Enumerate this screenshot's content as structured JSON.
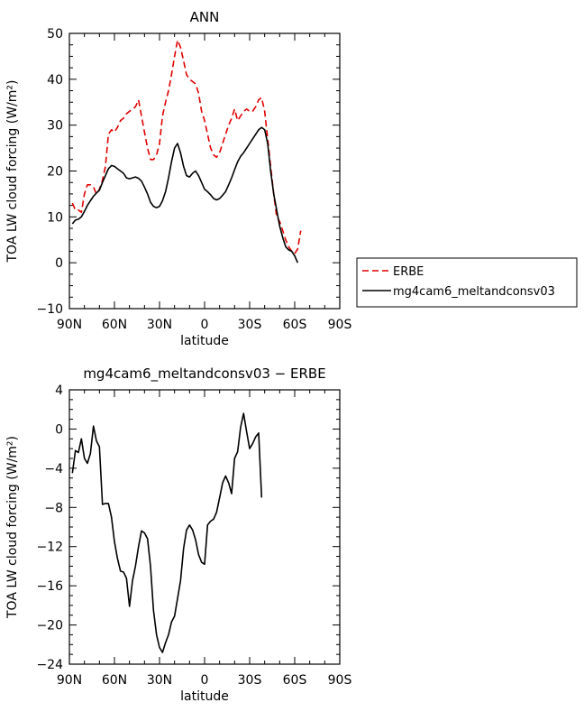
{
  "colors": {
    "erbe": "#e00000",
    "model": "#000000"
  },
  "chart_data": [
    {
      "type": "line",
      "title": "ANN",
      "xlabel": "latitude",
      "ylabel": "TOA LW cloud forcing (W/m²)",
      "xlim": [
        90,
        -90
      ],
      "ylim": [
        -10,
        50
      ],
      "xticks": [
        90,
        60,
        30,
        0,
        -30,
        -60,
        -90
      ],
      "xtick_labels": [
        "90N",
        "60N",
        "30N",
        "0",
        "30S",
        "60S",
        "90S"
      ],
      "yticks": [
        -10,
        0,
        10,
        20,
        30,
        40,
        50
      ],
      "ytick_labels": [
        "−10",
        "0",
        "10",
        "20",
        "30",
        "40",
        "50"
      ],
      "legend": {
        "placement": "right",
        "entries": [
          "ERBE",
          "mg4cam6_meltandconsv03"
        ]
      },
      "series": [
        {
          "name": "ERBE",
          "style": "dashed",
          "points": [
            [
              88,
              13
            ],
            [
              86,
              11.5
            ],
            [
              84,
              11.5
            ],
            [
              82,
              11
            ],
            [
              80,
              15
            ],
            [
              78,
              17
            ],
            [
              76,
              17
            ],
            [
              74,
              16.5
            ],
            [
              72,
              15
            ],
            [
              70,
              16
            ],
            [
              68,
              18
            ],
            [
              66,
              21
            ],
            [
              64,
              28
            ],
            [
              62,
              29
            ],
            [
              60,
              28.5
            ],
            [
              58,
              29.5
            ],
            [
              56,
              31
            ],
            [
              54,
              31.5
            ],
            [
              52,
              32.5
            ],
            [
              50,
              33
            ],
            [
              48,
              33.5
            ],
            [
              46,
              34
            ],
            [
              44,
              35.5
            ],
            [
              42,
              32
            ],
            [
              40,
              28.5
            ],
            [
              38,
              25
            ],
            [
              36,
              22.5
            ],
            [
              34,
              22.5
            ],
            [
              32,
              23.5
            ],
            [
              30,
              26
            ],
            [
              28,
              32
            ],
            [
              26,
              35
            ],
            [
              24,
              37.5
            ],
            [
              22,
              41
            ],
            [
              20,
              45
            ],
            [
              18,
              48.5
            ],
            [
              16,
              47
            ],
            [
              14,
              44
            ],
            [
              12,
              41
            ],
            [
              10,
              40
            ],
            [
              8,
              39.5
            ],
            [
              6,
              39
            ],
            [
              4,
              37
            ],
            [
              2,
              33
            ],
            [
              0,
              31
            ],
            [
              -2,
              28
            ],
            [
              -4,
              25
            ],
            [
              -6,
              23.5
            ],
            [
              -8,
              23
            ],
            [
              -10,
              24
            ],
            [
              -12,
              26
            ],
            [
              -14,
              28
            ],
            [
              -16,
              30
            ],
            [
              -18,
              31.5
            ],
            [
              -20,
              33.5
            ],
            [
              -22,
              31
            ],
            [
              -24,
              32
            ],
            [
              -26,
              33
            ],
            [
              -28,
              33.5
            ],
            [
              -30,
              33
            ],
            [
              -32,
              33
            ],
            [
              -34,
              34
            ],
            [
              -36,
              35.5
            ],
            [
              -38,
              36
            ],
            [
              -40,
              33
            ],
            [
              -42,
              27
            ],
            [
              -44,
              21
            ],
            [
              -46,
              15
            ],
            [
              -48,
              10
            ],
            [
              -50,
              9
            ],
            [
              -52,
              7
            ],
            [
              -54,
              5
            ],
            [
              -56,
              3.5
            ],
            [
              -58,
              2.5
            ],
            [
              -60,
              2
            ],
            [
              -62,
              3
            ],
            [
              -64,
              7
            ]
          ]
        },
        {
          "name": "mg4cam6_meltandconsv03",
          "style": "solid",
          "points": [
            [
              88,
              8.5
            ],
            [
              86,
              9.3
            ],
            [
              84,
              9.5
            ],
            [
              82,
              10
            ],
            [
              80,
              11.2
            ],
            [
              78,
              12.5
            ],
            [
              76,
              13.5
            ],
            [
              74,
              14.5
            ],
            [
              72,
              15.2
            ],
            [
              70,
              15.8
            ],
            [
              68,
              17.5
            ],
            [
              66,
              19
            ],
            [
              64,
              20.5
            ],
            [
              62,
              21.2
            ],
            [
              60,
              21
            ],
            [
              58,
              20.5
            ],
            [
              56,
              20
            ],
            [
              54,
              19.5
            ],
            [
              52,
              18.5
            ],
            [
              50,
              18.3
            ],
            [
              48,
              18.5
            ],
            [
              46,
              18.7
            ],
            [
              44,
              18.4
            ],
            [
              42,
              17.8
            ],
            [
              40,
              16.5
            ],
            [
              38,
              15
            ],
            [
              36,
              13.2
            ],
            [
              34,
              12.3
            ],
            [
              32,
              12
            ],
            [
              30,
              12.3
            ],
            [
              28,
              13.5
            ],
            [
              26,
              15.5
            ],
            [
              24,
              18.5
            ],
            [
              22,
              22
            ],
            [
              20,
              25
            ],
            [
              18,
              26
            ],
            [
              16,
              24
            ],
            [
              14,
              21
            ],
            [
              12,
              19
            ],
            [
              10,
              18.7
            ],
            [
              8,
              19.5
            ],
            [
              6,
              20
            ],
            [
              4,
              19
            ],
            [
              2,
              17.5
            ],
            [
              0,
              16
            ],
            [
              -2,
              15.5
            ],
            [
              -4,
              14.8
            ],
            [
              -6,
              14
            ],
            [
              -8,
              13.7
            ],
            [
              -10,
              14
            ],
            [
              -12,
              14.7
            ],
            [
              -14,
              15.5
            ],
            [
              -16,
              17
            ],
            [
              -18,
              18.5
            ],
            [
              -20,
              20.3
            ],
            [
              -22,
              22
            ],
            [
              -24,
              23.2
            ],
            [
              -26,
              24
            ],
            [
              -28,
              25
            ],
            [
              -30,
              26
            ],
            [
              -32,
              27
            ],
            [
              -34,
              28
            ],
            [
              -36,
              29
            ],
            [
              -38,
              29.5
            ],
            [
              -40,
              29
            ],
            [
              -42,
              26
            ],
            [
              -44,
              20
            ],
            [
              -46,
              15
            ],
            [
              -48,
              11.5
            ],
            [
              -50,
              8
            ],
            [
              -52,
              5.5
            ],
            [
              -54,
              3.5
            ],
            [
              -56,
              2.8
            ],
            [
              -58,
              2.5
            ],
            [
              -60,
              1.5
            ],
            [
              -62,
              0
            ]
          ]
        }
      ]
    },
    {
      "type": "line",
      "title": "mg4cam6_meltandconsv03 − ERBE",
      "xlabel": "latitude",
      "ylabel": "TOA LW cloud forcing (W/m²)",
      "xlim": [
        90,
        -90
      ],
      "ylim": [
        -24,
        4
      ],
      "xticks": [
        90,
        60,
        30,
        0,
        -30,
        -60,
        -90
      ],
      "xtick_labels": [
        "90N",
        "60N",
        "30N",
        "0",
        "30S",
        "60S",
        "90S"
      ],
      "yticks": [
        -24,
        -20,
        -16,
        -12,
        -8,
        -4,
        0,
        4
      ],
      "ytick_labels": [
        "−24",
        "−20",
        "−16",
        "−12",
        "−8",
        "−4",
        "0",
        "4"
      ],
      "series": [
        {
          "style": "solid",
          "points": [
            [
              88,
              -4.5
            ],
            [
              86,
              -2.2
            ],
            [
              84,
              -2.4
            ],
            [
              82,
              -1
            ],
            [
              80,
              -3
            ],
            [
              78,
              -3.5
            ],
            [
              76,
              -2.5
            ],
            [
              74,
              0.3
            ],
            [
              72,
              -1.2
            ],
            [
              70,
              -1.8
            ],
            [
              68,
              -7.7
            ],
            [
              66,
              -7.6
            ],
            [
              64,
              -7.6
            ],
            [
              62,
              -9
            ],
            [
              60,
              -11.5
            ],
            [
              58,
              -13.2
            ],
            [
              56,
              -14.5
            ],
            [
              54,
              -14.6
            ],
            [
              52,
              -15.2
            ],
            [
              50,
              -18.1
            ],
            [
              48,
              -15.5
            ],
            [
              46,
              -14
            ],
            [
              44,
              -12
            ],
            [
              42,
              -10.4
            ],
            [
              40,
              -10.6
            ],
            [
              38,
              -11.2
            ],
            [
              36,
              -14
            ],
            [
              34,
              -18.5
            ],
            [
              32,
              -21
            ],
            [
              30,
              -22.3
            ],
            [
              28,
              -22.8
            ],
            [
              26,
              -21.8
            ],
            [
              24,
              -21
            ],
            [
              22,
              -19.7
            ],
            [
              20,
              -19.1
            ],
            [
              18,
              -17.3
            ],
            [
              16,
              -15.5
            ],
            [
              14,
              -12.2
            ],
            [
              12,
              -10.3
            ],
            [
              10,
              -9.8
            ],
            [
              8,
              -10.3
            ],
            [
              6,
              -11.3
            ],
            [
              4,
              -12.8
            ],
            [
              2,
              -13.6
            ],
            [
              0,
              -13.8
            ],
            [
              -2,
              -9.8
            ],
            [
              -4,
              -9.4
            ],
            [
              -6,
              -9.2
            ],
            [
              -8,
              -8.5
            ],
            [
              -10,
              -7
            ],
            [
              -12,
              -5.5
            ],
            [
              -14,
              -4.8
            ],
            [
              -16,
              -5.5
            ],
            [
              -18,
              -6.6
            ],
            [
              -20,
              -3
            ],
            [
              -22,
              -2.3
            ],
            [
              -24,
              0.2
            ],
            [
              -26,
              1.6
            ],
            [
              -28,
              -0.3
            ],
            [
              -30,
              -2
            ],
            [
              -32,
              -1.5
            ],
            [
              -34,
              -0.8
            ],
            [
              -36,
              -0.4
            ],
            [
              -38,
              -7
            ]
          ]
        }
      ]
    }
  ]
}
